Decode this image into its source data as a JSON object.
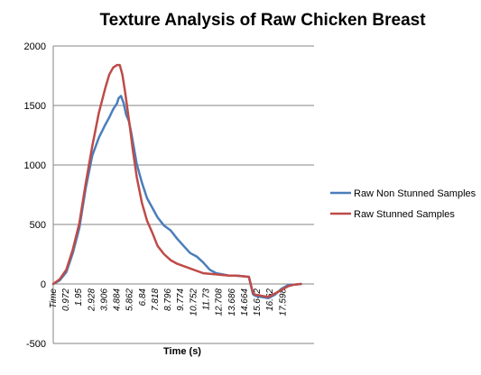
{
  "chart_data": {
    "type": "line",
    "title": "Texture Analysis of Raw Chicken Breast",
    "xlabel": "Time (s)",
    "ylabel": "",
    "ylim": [
      -500,
      2000
    ],
    "xlim": [
      0,
      20
    ],
    "yticks": [
      -500,
      0,
      500,
      1000,
      1500,
      2000
    ],
    "xtick_labels": [
      "Time",
      "0.972",
      "1.95",
      "2.928",
      "3.906",
      "4.884",
      "5.862",
      "6.84",
      "7.818",
      "8.796",
      "9.774",
      "10.752",
      "11.73",
      "12.708",
      "13.686",
      "14.664",
      "15.642",
      "16.62",
      "17.598"
    ],
    "xtick_values": [
      0,
      0.972,
      1.95,
      2.928,
      3.906,
      4.884,
      5.862,
      6.84,
      7.818,
      8.796,
      9.774,
      10.752,
      11.73,
      12.708,
      13.686,
      14.664,
      15.642,
      16.62,
      17.598
    ],
    "grid": true,
    "legend_position": "right",
    "series": [
      {
        "name": "Raw Non Stunned Samples",
        "color": "#4a7ebb",
        "x": [
          0,
          0.5,
          1.0,
          1.5,
          2.0,
          2.5,
          3.0,
          3.5,
          4.0,
          4.3,
          4.6,
          4.9,
          5.0,
          5.2,
          5.4,
          5.6,
          5.8,
          6.0,
          6.4,
          6.8,
          7.2,
          7.6,
          8.0,
          8.5,
          9.0,
          9.5,
          10.0,
          10.5,
          11.0,
          11.5,
          12.0,
          12.5,
          13.0,
          13.5,
          14.0,
          14.5,
          15.0,
          15.3,
          15.35,
          15.5,
          16.0,
          16.5,
          17.0,
          17.5,
          18.0,
          18.5,
          19.0
        ],
        "y": [
          0,
          30,
          100,
          260,
          470,
          810,
          1080,
          1230,
          1340,
          1400,
          1470,
          1520,
          1560,
          1580,
          1520,
          1420,
          1370,
          1260,
          1010,
          850,
          720,
          640,
          560,
          490,
          450,
          380,
          320,
          260,
          230,
          180,
          120,
          90,
          80,
          70,
          70,
          65,
          60,
          -80,
          -90,
          -100,
          -110,
          -120,
          -90,
          -40,
          -10,
          -5,
          0
        ]
      },
      {
        "name": "Raw Stunned Samples",
        "color": "#be4b48",
        "x": [
          0,
          0.5,
          1.0,
          1.5,
          2.0,
          2.5,
          3.0,
          3.5,
          4.0,
          4.3,
          4.6,
          4.9,
          5.1,
          5.3,
          5.5,
          5.7,
          5.9,
          6.1,
          6.4,
          6.8,
          7.2,
          7.6,
          8.0,
          8.5,
          9.0,
          9.5,
          10.0,
          10.5,
          11.0,
          11.5,
          12.0,
          12.5,
          13.0,
          13.5,
          14.0,
          14.5,
          15.0,
          15.3,
          15.35,
          15.5,
          16.0,
          16.5,
          17.0,
          17.5,
          18.0,
          18.5,
          19.0
        ],
        "y": [
          0,
          40,
          120,
          290,
          510,
          850,
          1160,
          1440,
          1650,
          1760,
          1820,
          1840,
          1840,
          1760,
          1620,
          1460,
          1300,
          1130,
          900,
          680,
          530,
          430,
          320,
          250,
          200,
          170,
          150,
          130,
          110,
          90,
          85,
          80,
          75,
          70,
          70,
          65,
          60,
          -70,
          -80,
          -90,
          -100,
          -110,
          -80,
          -50,
          -20,
          -5,
          0
        ]
      }
    ]
  }
}
